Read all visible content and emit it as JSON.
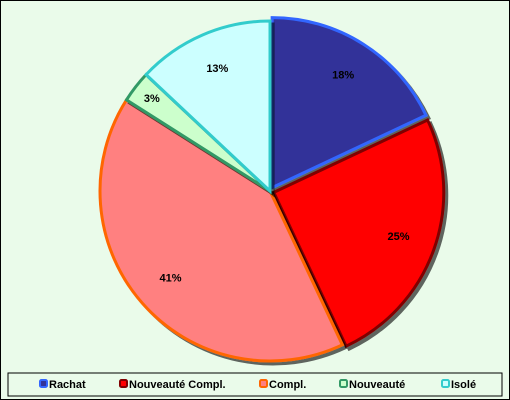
{
  "chart_data": {
    "type": "pie",
    "categories": [
      "Rachat",
      "Nouveauté Compl.",
      "Compl.",
      "Nouveauté",
      "Isolé"
    ],
    "values": [
      18,
      25,
      41,
      3,
      13
    ],
    "value_labels": [
      "18%",
      "25%",
      "41%",
      "3%",
      "13%"
    ],
    "colors": [
      "#333399",
      "#ff0000",
      "#ff8080",
      "#ccffcc",
      "#ccffff"
    ],
    "edge_colors": [
      "#3366ff",
      "#800000",
      "#ff6600",
      "#339966",
      "#33cccc"
    ],
    "legend": "bottom"
  }
}
